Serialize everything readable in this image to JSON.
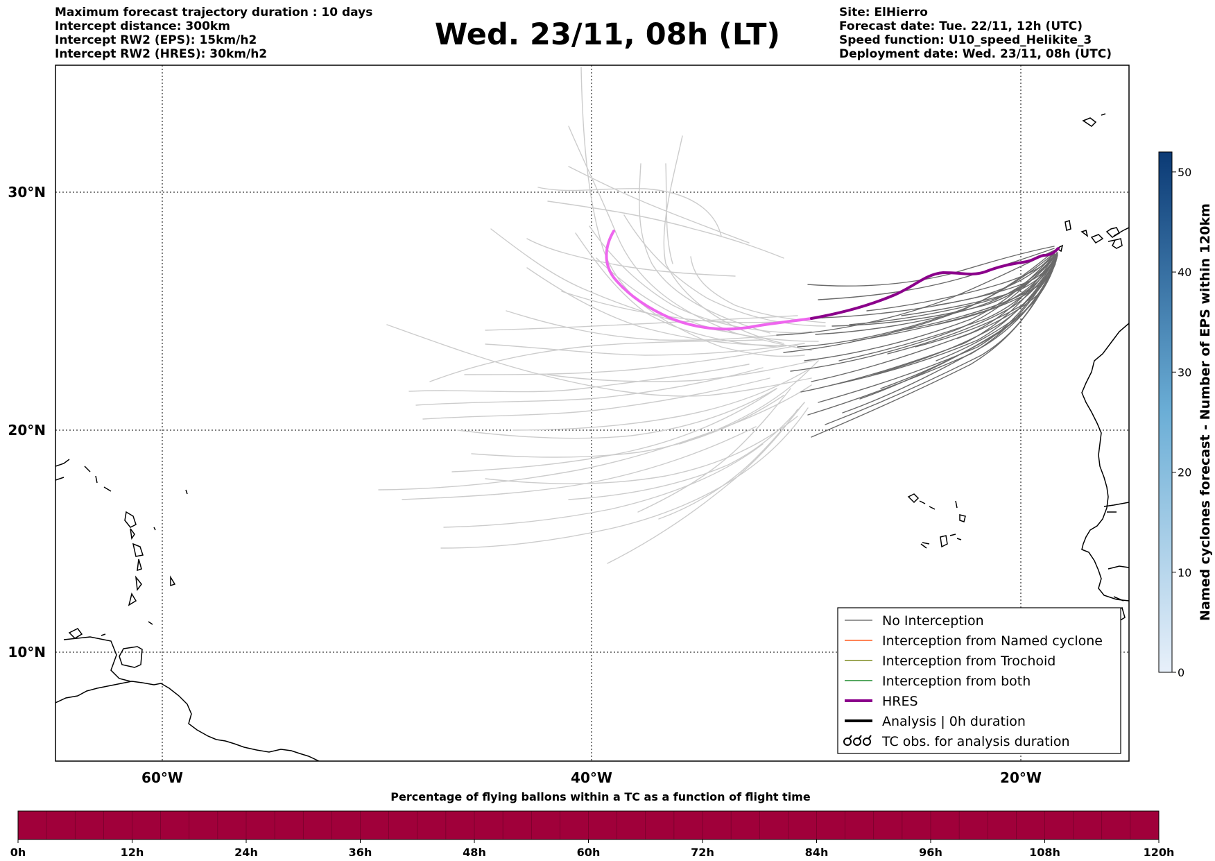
{
  "header": {
    "left_lines": [
      "Maximum forecast trajectory duration : 10 days",
      "Intercept distance: 300km",
      "Intercept RW2 (EPS):  15km/h2",
      "Intercept RW2 (HRES): 30km/h2"
    ],
    "title": "Wed. 23/11, 08h (LT)",
    "right_lines": [
      "Site: ElHierro",
      "Forecast date: Tue. 22/11, 12h (UTC)",
      "Speed function: U10_speed_Helikite_3",
      "Deployment date: Wed. 23/11, 08h (UTC)"
    ]
  },
  "map": {
    "lat_labels": [
      "30°N",
      "20°N",
      "10°N"
    ],
    "lon_labels": [
      "60°W",
      "40°W",
      "20°W"
    ],
    "extent": {
      "lon_min": -65,
      "lon_max": -15,
      "lat_min": 5.3,
      "lat_max": 35.3
    },
    "colors": {
      "eps_intercept_free": "#cccccc",
      "eps_no_interception": "#686868",
      "hres": "#8b008b",
      "hres_tail": "#ee66ee"
    }
  },
  "legend": {
    "items": [
      {
        "label": "No Interception",
        "color": "#777777",
        "style": "thin"
      },
      {
        "label": "Interception from Named cyclone",
        "color": "#ff5a1f",
        "style": "thin"
      },
      {
        "label": "Interception from Trochoid",
        "color": "#7f8b22",
        "style": "thin"
      },
      {
        "label": "Interception from both",
        "color": "#1f8b2e",
        "style": "thin"
      },
      {
        "label": "HRES",
        "color": "#8b008b",
        "style": "thick"
      },
      {
        "label": "Analysis | 0h duration",
        "color": "#000000",
        "style": "thick"
      },
      {
        "label": "TC obs. for analysis duration",
        "color": "#000000",
        "style": "symbol"
      }
    ]
  },
  "colorbar_right": {
    "label": "Named cyclones forecast - Number of EPS within 120km",
    "ticks": [
      "0",
      "10",
      "20",
      "30",
      "40",
      "50"
    ],
    "min": 0,
    "max": 52,
    "color_low": "#e8f0fa",
    "color_high": "#0b3a75"
  },
  "colorbar_bottom": {
    "title": "Percentage of flying ballons within a TC as a function of flight time",
    "ticks": [
      "0h",
      "12h",
      "24h",
      "36h",
      "48h",
      "60h",
      "72h",
      "84h",
      "96h",
      "108h",
      "120h"
    ],
    "fill_color": "#a0003a"
  }
}
